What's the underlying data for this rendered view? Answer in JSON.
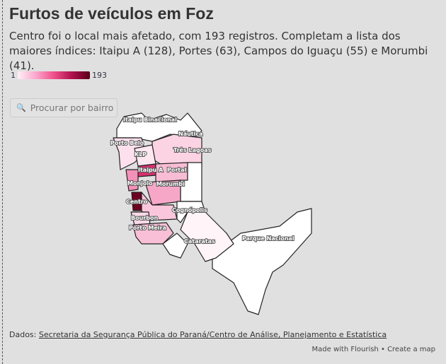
{
  "title": "Furtos de veículos em Foz",
  "subtitle": "Centro foi o local mais afetado, com 193 registros. Completam a lista dos maiores índices: Itaipu A (128), Portes (63), Campos do Iguaçu (55) e Morumbi (41).",
  "legend": {
    "min": "1",
    "max": "193",
    "colors": [
      "#fff0f6",
      "#f9a8cc",
      "#f0508a",
      "#b0104e",
      "#5a0018"
    ]
  },
  "search": {
    "placeholder": "Procurar por bairro",
    "icon": "search-icon"
  },
  "map_labels": [
    "Itaipu Binacional",
    "Náutica",
    "Porto Belo",
    "Três Lagoas",
    "KLP",
    "Itaipu A",
    "Portal",
    "Monjolo",
    "Morumbi",
    "Centro",
    "Cognópolis",
    "Bourbon",
    "Porto Meira",
    "Cataratas",
    "Parque Nacional"
  ],
  "footer": {
    "source_prefix": "Dados:",
    "source_link": "Secretaria da Segurança Pública do Paraná/Centro de Análise, Planejamento e Estatística",
    "made_with": "Made with Flourish",
    "separator": "•",
    "create": "Create a map"
  }
}
